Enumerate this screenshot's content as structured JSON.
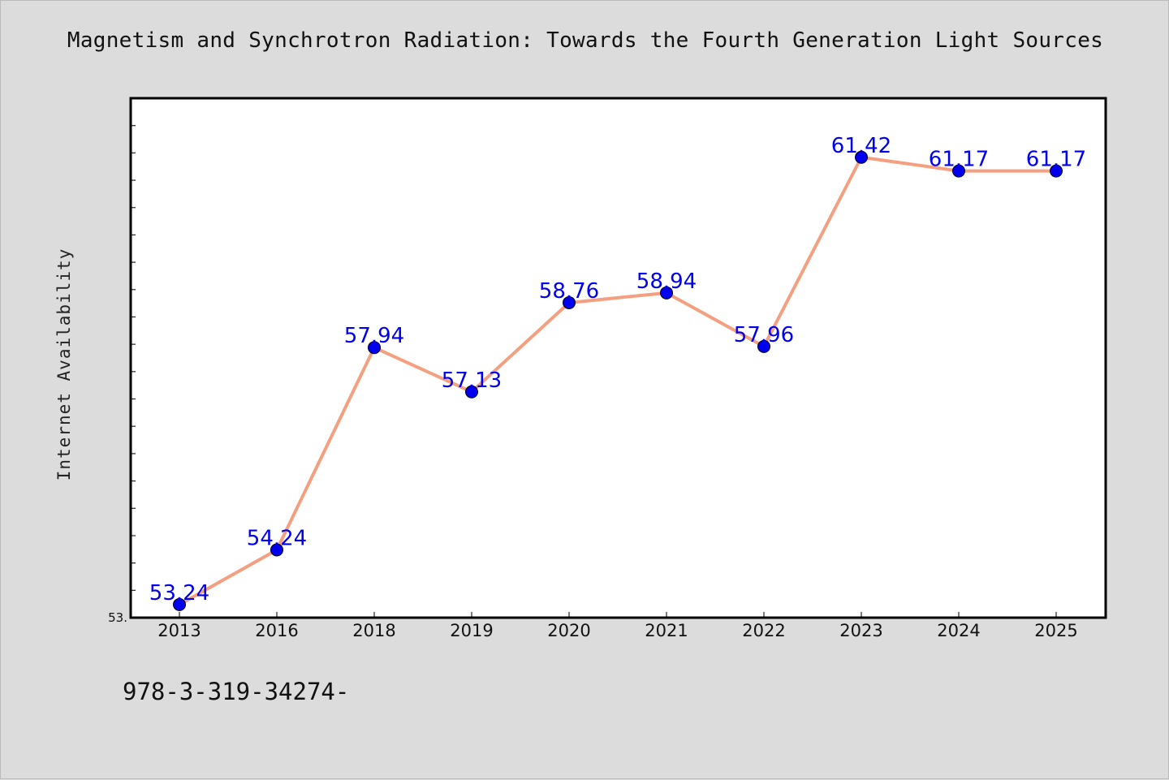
{
  "chart_data": {
    "type": "line",
    "title": "Magnetism and Synchrotron Radiation: Towards the Fourth Generation Light Sources",
    "ylabel": "Internet Availability",
    "xlabel": "",
    "categories": [
      "2013",
      "2016",
      "2018",
      "2019",
      "2020",
      "2021",
      "2022",
      "2023",
      "2024",
      "2025"
    ],
    "series": [
      {
        "values": [
          53.24,
          54.24,
          57.94,
          57.13,
          58.76,
          58.94,
          57.96,
          61.42,
          61.17,
          61.17
        ],
        "data_labels": [
          "53.24",
          "54.24",
          "57.94",
          "57.13",
          "58.76",
          "58.94",
          "57.96",
          "61.42",
          "61.17",
          "61.17"
        ]
      }
    ],
    "ylim": [
      53.0,
      62.5
    ],
    "y_tick_labels": [
      "53."
    ],
    "grid": false,
    "line_color": "#f4a080",
    "marker_color": "#0000ee",
    "label_color": "#0000ee"
  },
  "footer": {
    "text": "978-3-319-34274-"
  }
}
